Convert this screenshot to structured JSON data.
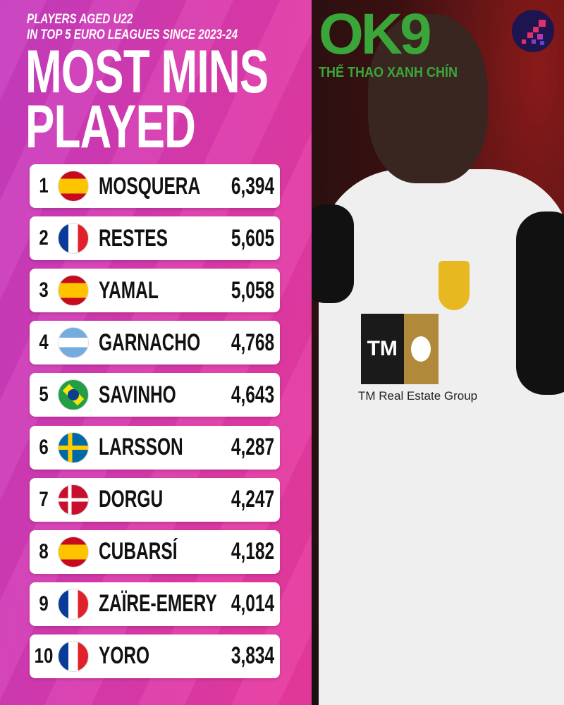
{
  "header": {
    "subtitle_line1": "PLAYERS AGED U22",
    "subtitle_line2": "IN TOP 5 EURO LEAGUES SINCE 2023-24",
    "title_line1": "MOST MINS",
    "title_line2": "PLAYED"
  },
  "watermark": {
    "logo": "OK9",
    "tagline": "THỂ THAO XANH CHÍN",
    "color": "#3aa63a"
  },
  "players": [
    {
      "rank": "1",
      "flag": "es",
      "name": "MOSQUERA",
      "value": "6,394"
    },
    {
      "rank": "2",
      "flag": "fr",
      "name": "RESTES",
      "value": "5,605"
    },
    {
      "rank": "3",
      "flag": "es",
      "name": "YAMAL",
      "value": "5,058"
    },
    {
      "rank": "4",
      "flag": "ar",
      "name": "GARNACHO",
      "value": "4,768"
    },
    {
      "rank": "5",
      "flag": "br",
      "name": "SAVINHO",
      "value": "4,643"
    },
    {
      "rank": "6",
      "flag": "se",
      "name": "LARSSON",
      "value": "4,287"
    },
    {
      "rank": "7",
      "flag": "dk",
      "name": "DORGU",
      "value": "4,247"
    },
    {
      "rank": "8",
      "flag": "es",
      "name": "CUBARSÍ",
      "value": "4,182"
    },
    {
      "rank": "9",
      "flag": "fr",
      "name": "ZAÏRE-EMERY",
      "value": "4,014"
    },
    {
      "rank": "10",
      "flag": "fr",
      "name": "YORO",
      "value": "3,834"
    }
  ],
  "photo": {
    "sponsor_logo": "TM",
    "sponsor_text": "TM Real Estate Group"
  },
  "colors": {
    "background": "#d83aae",
    "row": "#ffffff",
    "badge": "#1e1450"
  }
}
